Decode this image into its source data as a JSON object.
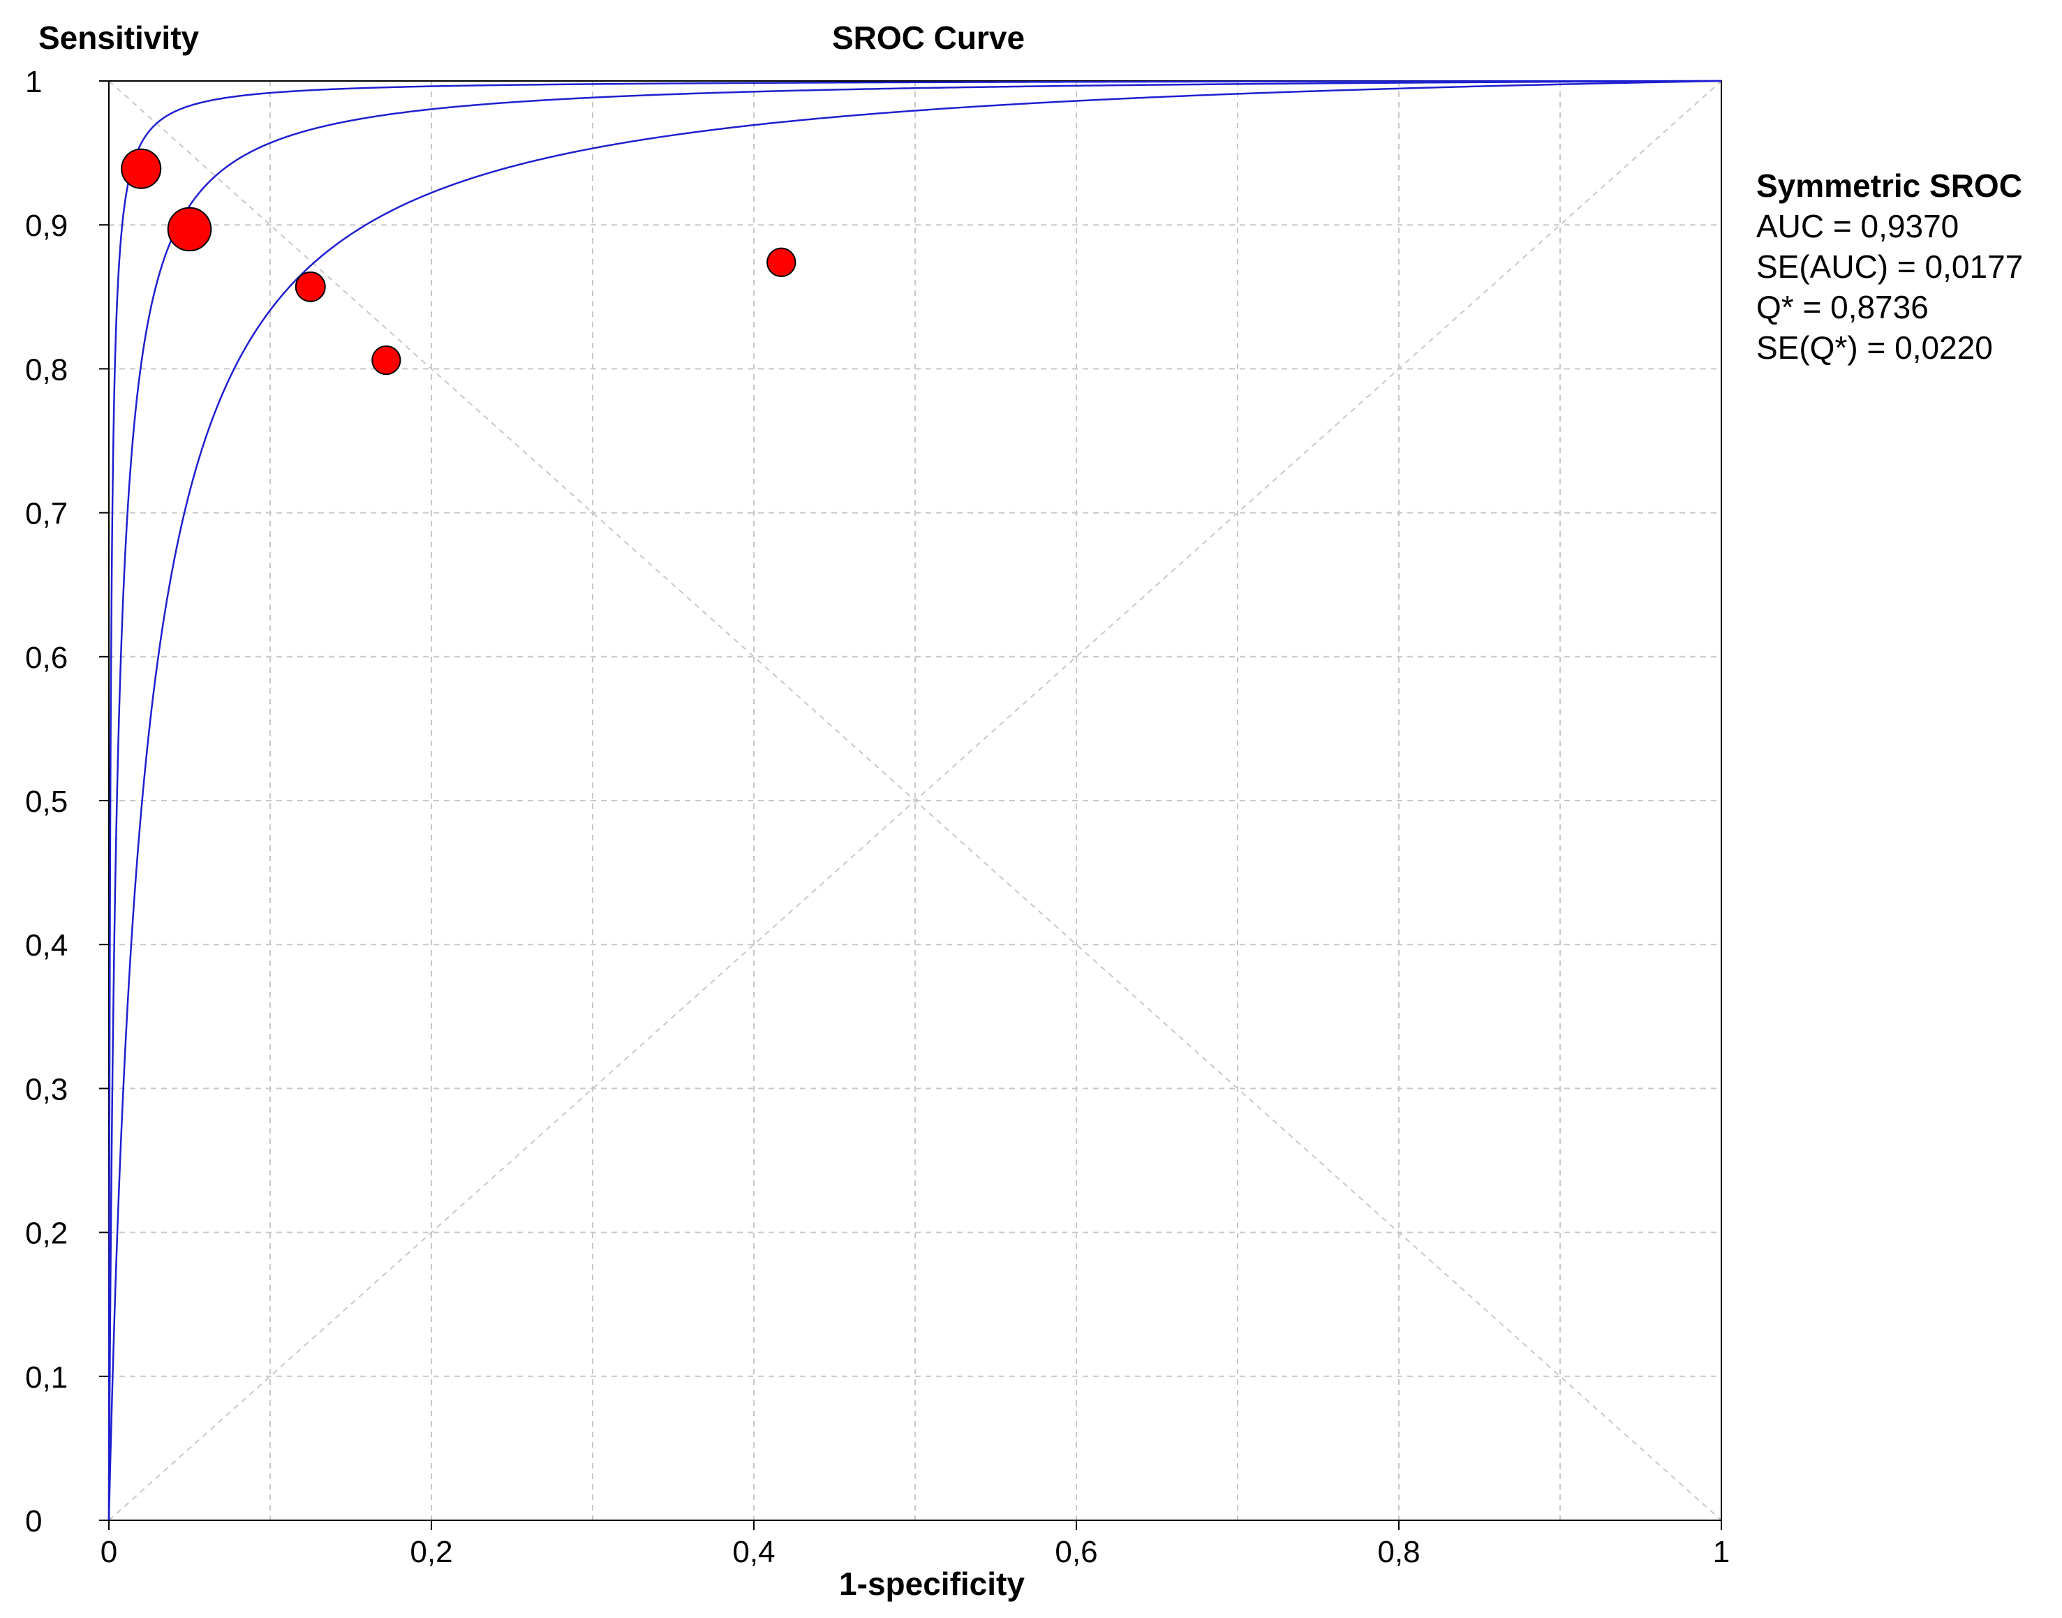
{
  "chart_data": {
    "type": "scatter",
    "title": "SROC Curve",
    "xlabel": "1-specificity",
    "ylabel": "Sensitivity",
    "xlim": [
      0,
      1
    ],
    "ylim": [
      0,
      1
    ],
    "grid": true,
    "x_ticks": [
      {
        "value": 0,
        "label": "0"
      },
      {
        "value": 0.2,
        "label": "0,2"
      },
      {
        "value": 0.4,
        "label": "0,4"
      },
      {
        "value": 0.6,
        "label": "0,6"
      },
      {
        "value": 0.8,
        "label": "0,8"
      },
      {
        "value": 1,
        "label": "1"
      }
    ],
    "y_ticks": [
      {
        "value": 0,
        "label": "0"
      },
      {
        "value": 0.1,
        "label": "0,1"
      },
      {
        "value": 0.2,
        "label": "0,2"
      },
      {
        "value": 0.3,
        "label": "0,3"
      },
      {
        "value": 0.4,
        "label": "0,4"
      },
      {
        "value": 0.5,
        "label": "0,5"
      },
      {
        "value": 0.6,
        "label": "0,6"
      },
      {
        "value": 0.7,
        "label": "0,7"
      },
      {
        "value": 0.8,
        "label": "0,8"
      },
      {
        "value": 0.9,
        "label": "0,9"
      },
      {
        "value": 1,
        "label": "1"
      }
    ],
    "studies": [
      {
        "x": 0.02,
        "y": 0.939,
        "weight": 1.0
      },
      {
        "x": 0.05,
        "y": 0.897,
        "weight": 1.1
      },
      {
        "x": 0.125,
        "y": 0.857,
        "weight": 0.75
      },
      {
        "x": 0.172,
        "y": 0.806,
        "weight": 0.72
      },
      {
        "x": 0.417,
        "y": 0.874,
        "weight": 0.72
      }
    ],
    "curves_dor": [
      1080,
      200,
      47.5
    ],
    "curve_color": "#1f1fd0",
    "point_color": "#ff0000",
    "annotation": {
      "heading": "Symmetric SROC",
      "lines": [
        "AUC = 0,9370",
        "SE(AUC) = 0,0177",
        "Q* = 0,8736",
        "SE(Q*) = 0,0220"
      ]
    }
  }
}
